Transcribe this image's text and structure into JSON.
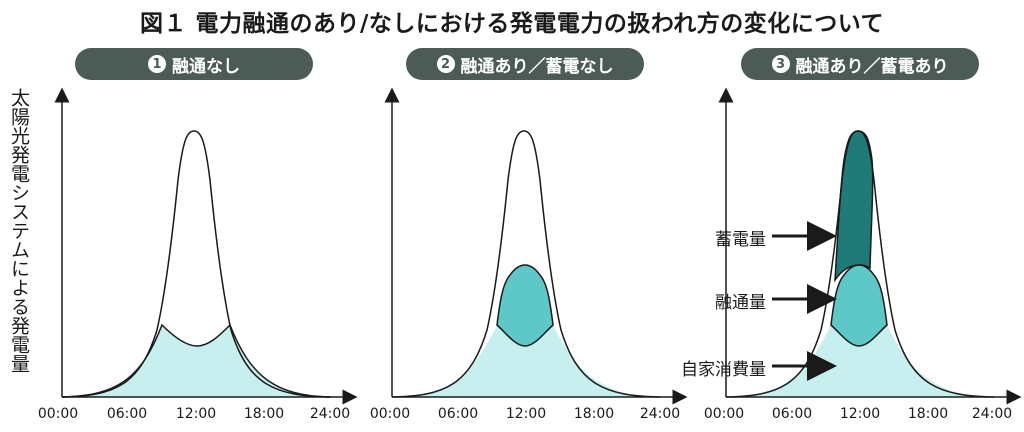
{
  "title": "図１ 電力融通のあり/なしにおける発電電力の扱われ方の変化について",
  "panels": [
    {
      "num": "1",
      "label": "融通なし"
    },
    {
      "num": "2",
      "label": "融通あり／蓄電なし"
    },
    {
      "num": "3",
      "label": "融通あり／蓄電あり"
    }
  ],
  "y_axis_label": "太陽光発電システムによる発電量",
  "x_ticks": [
    "00:00",
    "06:00",
    "12:00",
    "18:00",
    "24:00"
  ],
  "callouts": {
    "storage": "蓄電量",
    "interchange": "融通量",
    "self_consumption": "自家消費量"
  },
  "colors": {
    "pill": "#4d5b57",
    "self_consumption": "#c7efef",
    "interchange": "#5ec7c7",
    "storage": "#1f7a78"
  }
}
